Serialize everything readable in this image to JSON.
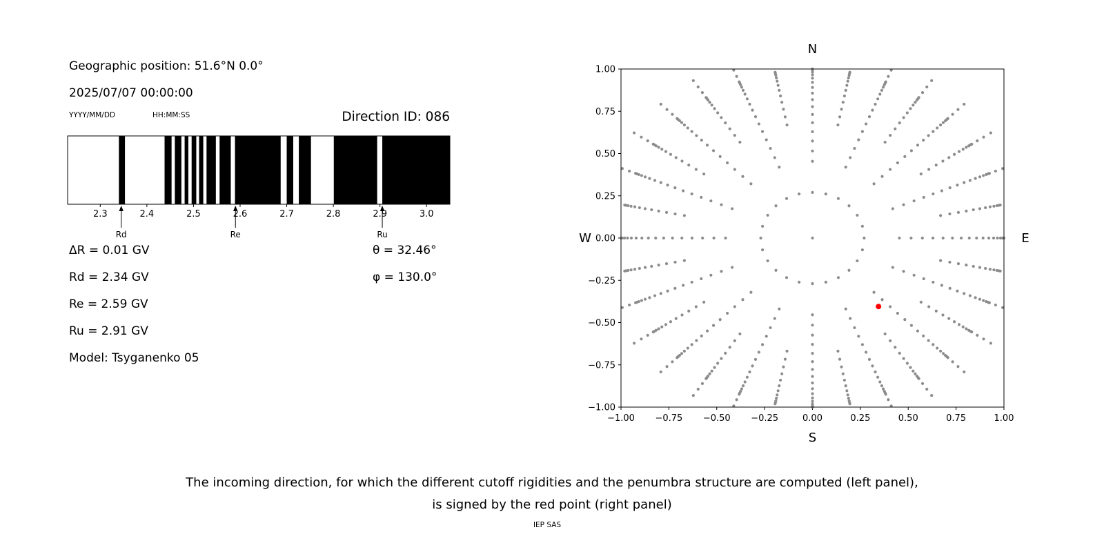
{
  "colors": {
    "background": "#ffffff",
    "text": "#000000",
    "band": "#000000",
    "grid_dot": "#8c8c8c",
    "selected_point": "#ff0000"
  },
  "left_panel": {
    "geographic_position": "Geographic position: 51.6°N 0.0°",
    "datetime": "2025/07/07 00:00:00",
    "date_format_label": "YYYY/MM/DD",
    "time_format_label": "HH:MM:SS",
    "direction_id": "Direction ID: 086",
    "parameters": [
      "ΔR = 0.01 GV",
      "Rd = 2.34 GV",
      "Re = 2.59 GV",
      "Ru = 2.91 GV",
      "Model: Tsyganenko 05"
    ],
    "angles": [
      "θ = 32.46°",
      "φ = 130.0°"
    ]
  },
  "caption": {
    "line1": "The incoming direction, for which the different cutoff rigidities and the penumbra structure are computed (left panel),",
    "line2": "is signed by the red point (right panel)",
    "credit": "IEP SAS"
  },
  "chart_data": [
    {
      "name": "penumbra-structure",
      "type": "bar",
      "title": "Direction ID: 086",
      "xlim": [
        2.23,
        3.05
      ],
      "xticks": [
        "2.3",
        "2.4",
        "2.5",
        "2.6",
        "2.7",
        "2.8",
        "2.9",
        "3.0"
      ],
      "black_bands_gv": [
        [
          2.34,
          2.353
        ],
        [
          2.438,
          2.453
        ],
        [
          2.46,
          2.474
        ],
        [
          2.481,
          2.489
        ],
        [
          2.496,
          2.506
        ],
        [
          2.512,
          2.521
        ],
        [
          2.528,
          2.548
        ],
        [
          2.556,
          2.58
        ],
        [
          2.589,
          2.687
        ],
        [
          2.7,
          2.714
        ],
        [
          2.726,
          2.752
        ],
        [
          2.801,
          2.894
        ],
        [
          2.905,
          3.05
        ]
      ],
      "markers": [
        {
          "label": "Rd",
          "x": 2.345
        },
        {
          "label": "Re",
          "x": 2.59
        },
        {
          "label": "Ru",
          "x": 2.905
        }
      ]
    },
    {
      "name": "incoming-direction-map",
      "type": "scatter",
      "xlim": [
        -1,
        1
      ],
      "ylim": [
        -1,
        1
      ],
      "xticks": [
        "−1.00",
        "−0.75",
        "−0.50",
        "−0.25",
        "0.00",
        "0.25",
        "0.50",
        "0.75",
        "1.00"
      ],
      "yticks": [
        "1.00",
        "0.75",
        "0.50",
        "0.25",
        "0.00",
        "−0.25",
        "−0.50",
        "−0.75",
        "−1.00"
      ],
      "compass": {
        "top": "N",
        "bottom": "S",
        "left": "W",
        "right": "E"
      },
      "selected_point": {
        "x": 0.345,
        "y": -0.405
      },
      "grid_dots": {
        "center": true,
        "inner_ring": {
          "radius": 0.27,
          "count": 24
        },
        "n_spokes": 32,
        "spoke_step_deg": 11.25,
        "primary_spoke_radii": [
          0.454,
          0.515,
          0.574,
          0.629,
          0.682,
          0.731,
          0.777,
          0.819,
          0.857,
          0.891,
          0.921,
          0.946,
          0.966,
          0.982,
          0.993,
          1.0,
          1.035,
          1.075,
          1.12
        ],
        "secondary_spoke_radii": [
          0.682,
          0.731,
          0.777,
          0.819,
          0.857,
          0.891,
          0.921,
          0.946,
          0.966,
          0.982,
          0.993,
          1.0,
          1.035,
          1.075,
          1.12
        ]
      }
    }
  ]
}
